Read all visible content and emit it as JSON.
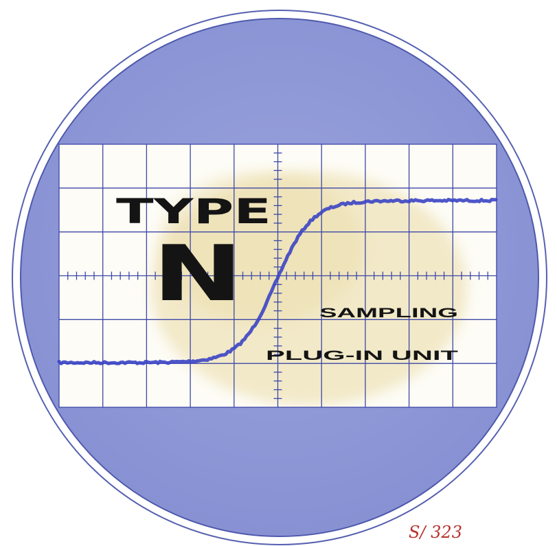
{
  "cover": {
    "title_top": "TYPE",
    "title_letter": "N",
    "subtitle_line1": "SAMPLING",
    "subtitle_line2": "PLUG-IN UNIT",
    "handwritten_note": "S/ 323"
  },
  "graticule": {
    "columns": 10,
    "rows": 6,
    "minor_ticks_per_division": 5
  },
  "colors": {
    "face_blue": "#8d97d6",
    "face_rim": "#4e59ad",
    "grid_line": "#3d47a8",
    "screen_fill": "#fdfcf6",
    "stain": "#efe3b9",
    "trace": "#3b44c4",
    "title_text": "#141414",
    "note_ink": "#b8322e"
  }
}
